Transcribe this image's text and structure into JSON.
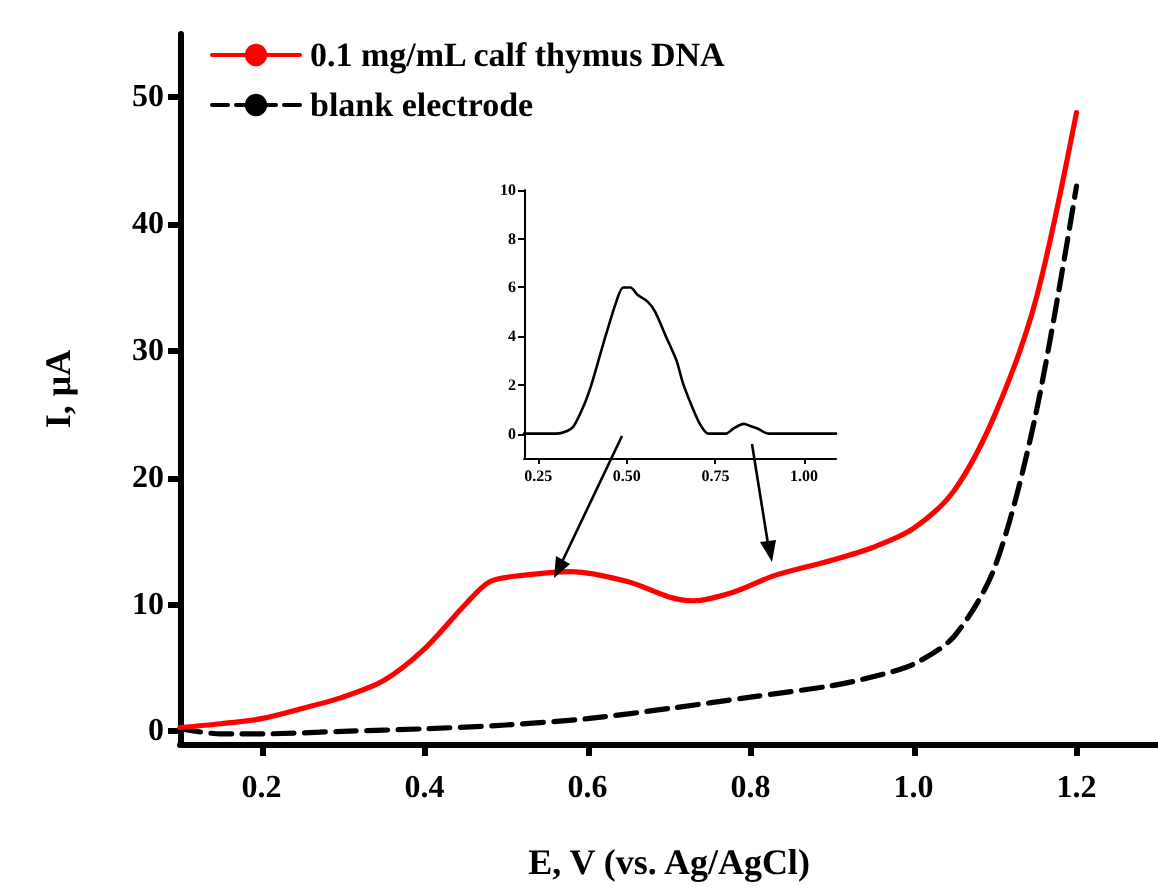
{
  "chart_data": [
    {
      "type": "line",
      "xlabel": "E, V (vs. Ag/AgCl)",
      "ylabel": "I, μA",
      "xlim": [
        0.1,
        1.3
      ],
      "ylim": [
        -1,
        55
      ],
      "xticks": [
        {
          "value": 0.2,
          "label": "0.2"
        },
        {
          "value": 0.4,
          "label": "0.4"
        },
        {
          "value": 0.6,
          "label": "0.6"
        },
        {
          "value": 0.8,
          "label": "0.8"
        },
        {
          "value": 1.0,
          "label": "1.0"
        },
        {
          "value": 1.2,
          "label": "1.2"
        }
      ],
      "yticks": [
        0,
        10,
        20,
        30,
        40,
        50
      ],
      "grid": false,
      "legend": "top left",
      "marker": "none",
      "series": [
        {
          "name": "0.1 mg/mL calf thymus DNA",
          "color": "#ff0000",
          "line_style": "solid",
          "x": [
            0.1,
            0.15,
            0.2,
            0.25,
            0.3,
            0.35,
            0.4,
            0.45,
            0.48,
            0.52,
            0.58,
            0.65,
            0.7,
            0.73,
            0.78,
            0.83,
            0.9,
            0.95,
            1.0,
            1.05,
            1.1,
            1.15,
            1.2
          ],
          "values": [
            0.3,
            0.6,
            1,
            1.8,
            2.7,
            4,
            6.5,
            10,
            11.8,
            12.3,
            12.6,
            11.8,
            10.6,
            10.3,
            11,
            12.3,
            13.5,
            14.5,
            16,
            19,
            25,
            34,
            48.8
          ]
        },
        {
          "name": "blank electrode",
          "color": "#000000",
          "line_style": "dashed",
          "x": [
            0.1,
            0.15,
            0.2,
            0.3,
            0.4,
            0.5,
            0.6,
            0.7,
            0.8,
            0.9,
            0.95,
            1.0,
            1.05,
            1.1,
            1.15,
            1.2
          ],
          "values": [
            0.2,
            -0.2,
            -0.2,
            0,
            0.2,
            0.5,
            1,
            1.8,
            2.7,
            3.6,
            4.3,
            5.3,
            7.5,
            13,
            25,
            43
          ]
        }
      ]
    },
    {
      "type": "line",
      "xlim": [
        0.21,
        1.09
      ],
      "ylim": [
        -1,
        10
      ],
      "xticks": [
        {
          "value": 0.25,
          "label": "0.25"
        },
        {
          "value": 0.5,
          "label": "0.50"
        },
        {
          "value": 0.75,
          "label": "0.75"
        },
        {
          "value": 1.0,
          "label": "1.00"
        }
      ],
      "yticks": [
        0,
        2,
        4,
        6,
        8,
        10
      ],
      "grid": false,
      "marker": "none",
      "series": [
        {
          "color": "#000000",
          "line_style": "solid",
          "x": [
            0.21,
            0.3,
            0.33,
            0.35,
            0.38,
            0.4,
            0.42,
            0.44,
            0.47,
            0.49,
            0.51,
            0.53,
            0.56,
            0.58,
            0.61,
            0.64,
            0.66,
            0.69,
            0.71,
            0.73,
            0.75,
            0.78,
            0.8,
            0.83,
            0.85,
            0.87,
            0.9,
            1.09
          ],
          "values": [
            0,
            0,
            0.1,
            0.3,
            1.2,
            2,
            3,
            4,
            5.4,
            6,
            6,
            5.7,
            5.4,
            5,
            4,
            3,
            2,
            0.9,
            0.3,
            0,
            0,
            0,
            0.2,
            0.4,
            0.3,
            0.2,
            0,
            0
          ]
        }
      ]
    }
  ]
}
